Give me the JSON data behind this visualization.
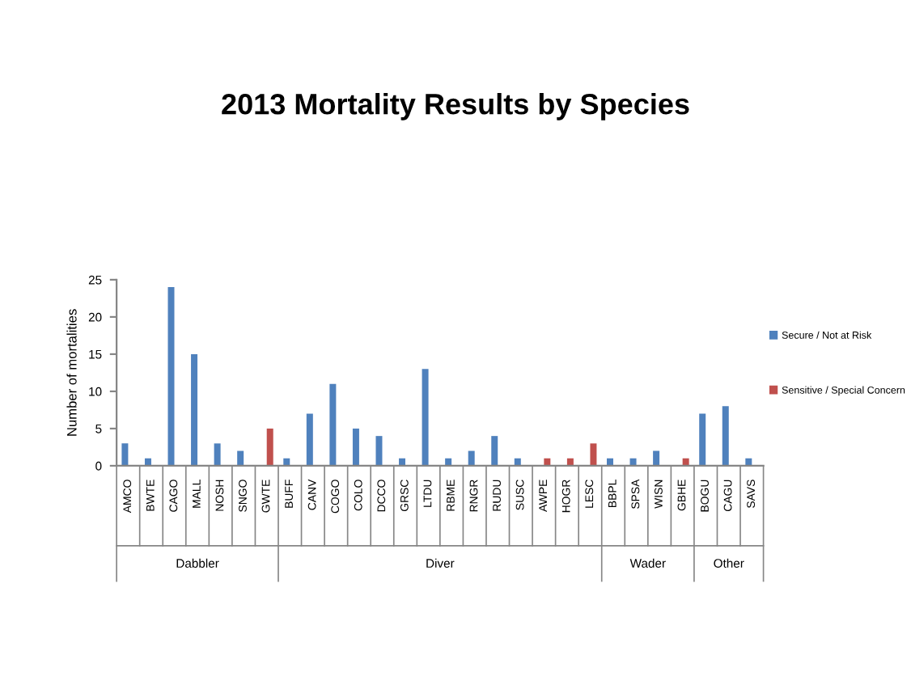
{
  "chart_data": {
    "type": "bar",
    "title": "2013 Mortality Results by Species",
    "ylabel": "Number of mortalities",
    "categories": [
      "AMCO",
      "BWTE",
      "CAGO",
      "MALL",
      "NOSH",
      "SNGO",
      "GWTE",
      "BUFF",
      "CANV",
      "COGO",
      "COLO",
      "DCCO",
      "GRSC",
      "LTDU",
      "RBME",
      "RNGR",
      "RUDU",
      "SUSC",
      "AWPE",
      "HOGR",
      "LESC",
      "BBPL",
      "SPSA",
      "WISN",
      "GBHE",
      "BOGU",
      "CAGU",
      "SAVS"
    ],
    "series": [
      {
        "name": "Secure / Not at Risk",
        "color": "#4f81bd",
        "values": [
          3,
          1,
          24,
          15,
          3,
          2,
          null,
          1,
          7,
          11,
          5,
          4,
          1,
          13,
          1,
          2,
          4,
          1,
          null,
          null,
          null,
          1,
          1,
          2,
          null,
          7,
          8,
          1
        ]
      },
      {
        "name": "Sensitive / Special Concern",
        "color": "#c0504d",
        "values": [
          null,
          null,
          null,
          null,
          null,
          null,
          5,
          null,
          null,
          null,
          null,
          null,
          null,
          null,
          null,
          null,
          null,
          null,
          1,
          1,
          3,
          null,
          null,
          null,
          1,
          null,
          null,
          null
        ]
      }
    ],
    "annotations": [
      "Dabbler",
      "Diver",
      "Wader",
      "Other"
    ],
    "ylim": [
      0,
      25
    ],
    "yticks": [
      0,
      5,
      10,
      15,
      20,
      25
    ],
    "grid": false,
    "legend": "right"
  }
}
